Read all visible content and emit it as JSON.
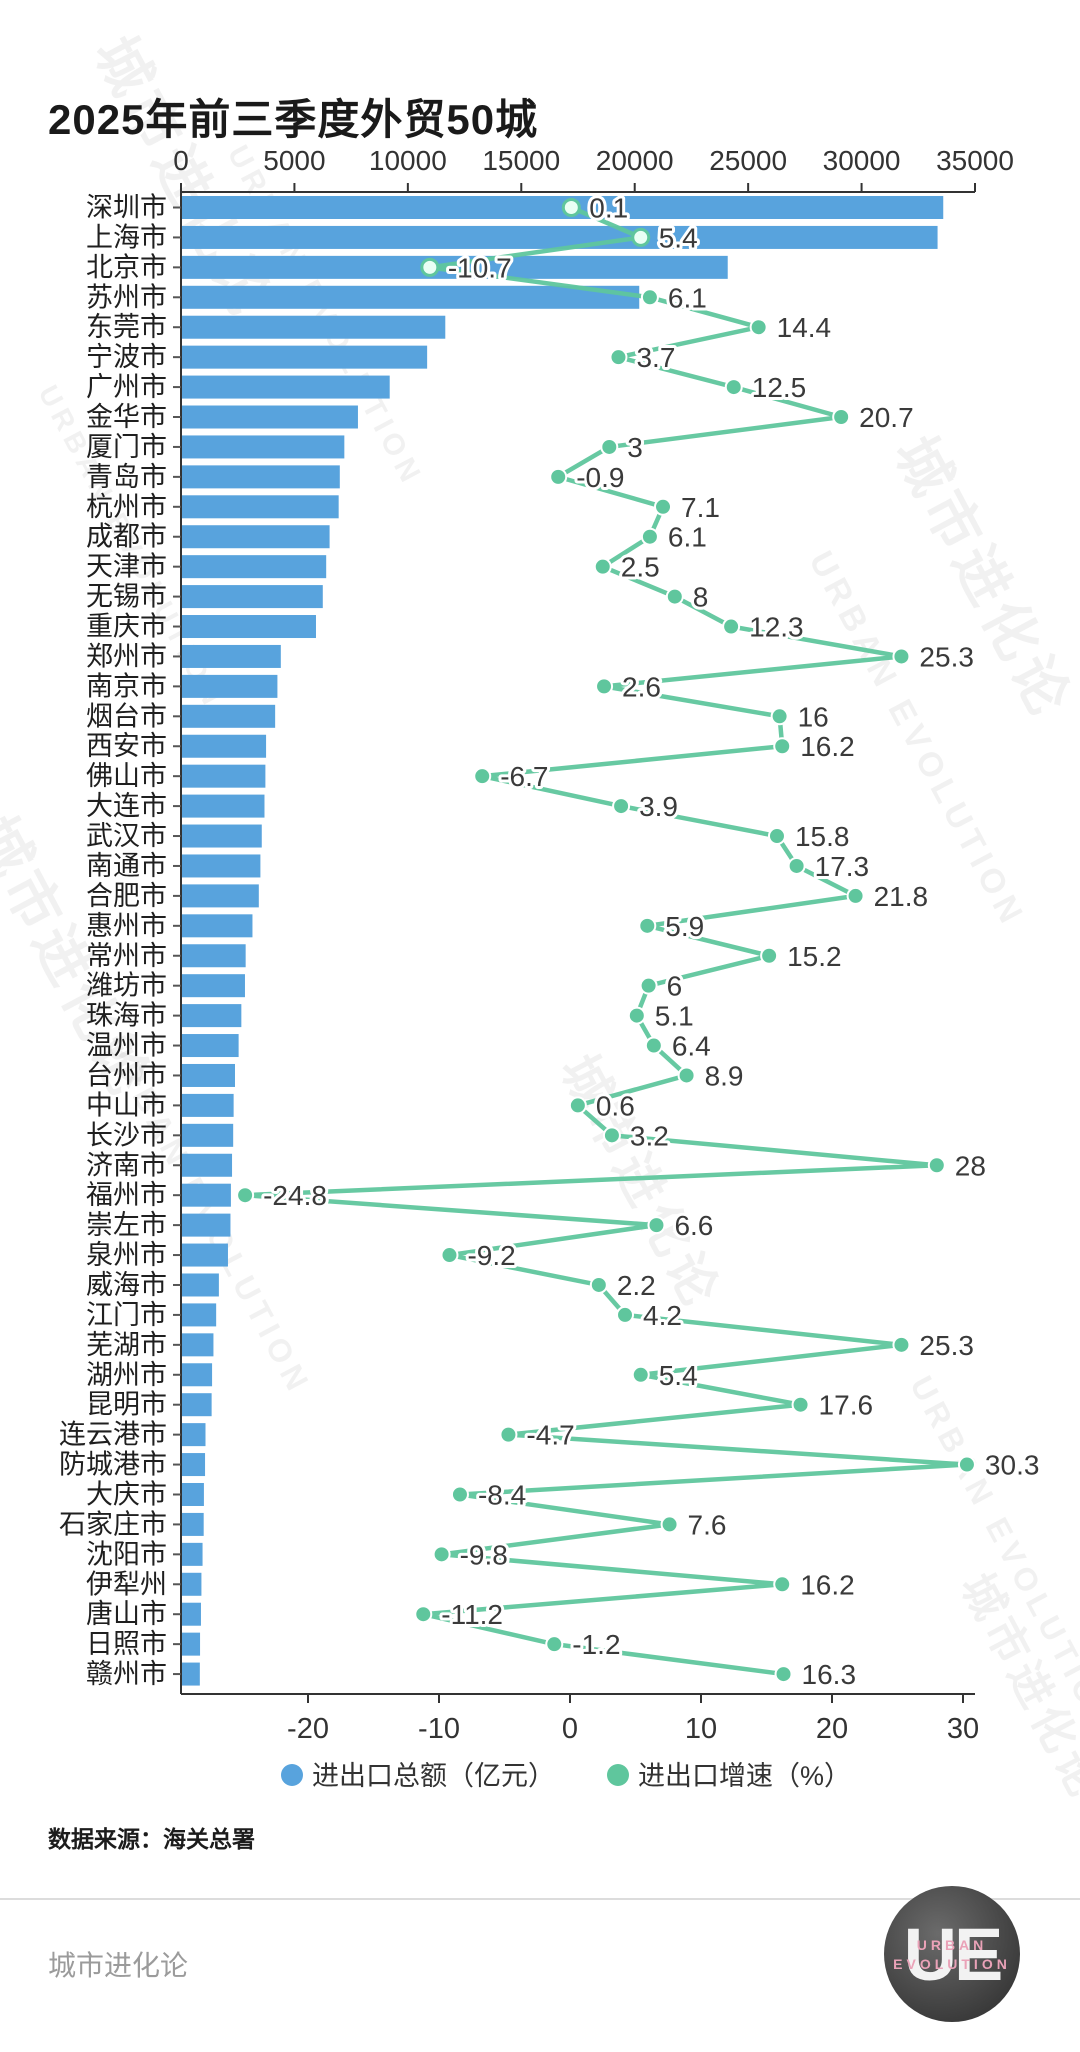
{
  "title": "2025年前三季度外贸50城",
  "legend": {
    "total": "进出口总额（亿元）",
    "growth": "进出口增速（%）"
  },
  "source": "数据来源：海关总署",
  "footer": {
    "brand": "城市进化论",
    "logo_initials": "UE",
    "logo_line1": "URBAN",
    "logo_line2": "EVOLUTION"
  },
  "watermarks": [
    "城市进化论",
    "URBAN EVOLUTION"
  ],
  "colors": {
    "bar": "#58a3dd",
    "line": "#5fc69d",
    "value_label": "#3a3a3a",
    "axis": "#333333",
    "city_label": "#1f1f1f"
  },
  "chart_data": {
    "type": "bar",
    "orientation": "horizontal",
    "title": "2025年前三季度外贸50城",
    "categories": [
      "深圳市",
      "上海市",
      "北京市",
      "苏州市",
      "东莞市",
      "宁波市",
      "广州市",
      "金华市",
      "厦门市",
      "青岛市",
      "杭州市",
      "成都市",
      "天津市",
      "无锡市",
      "重庆市",
      "郑州市",
      "南京市",
      "烟台市",
      "西安市",
      "佛山市",
      "大连市",
      "武汉市",
      "南通市",
      "合肥市",
      "惠州市",
      "常州市",
      "潍坊市",
      "珠海市",
      "温州市",
      "台州市",
      "中山市",
      "长沙市",
      "济南市",
      "福州市",
      "崇左市",
      "泉州市",
      "威海市",
      "江门市",
      "芜湖市",
      "湖州市",
      "昆明市",
      "连云港市",
      "防城港市",
      "大庆市",
      "石家庄市",
      "沈阳市",
      "伊犁州",
      "唐山市",
      "日照市",
      "赣州市"
    ],
    "series": [
      {
        "name": "进出口总额（亿元）",
        "type": "bar",
        "axis": "top",
        "values_estimated": true,
        "values": [
          33600,
          33350,
          24100,
          20200,
          11650,
          10850,
          9200,
          7800,
          7200,
          7000,
          6950,
          6550,
          6400,
          6250,
          5950,
          4400,
          4250,
          4150,
          3750,
          3720,
          3680,
          3560,
          3500,
          3430,
          3150,
          2850,
          2820,
          2660,
          2540,
          2380,
          2320,
          2300,
          2250,
          2200,
          2180,
          2070,
          1670,
          1550,
          1430,
          1370,
          1350,
          1080,
          1060,
          1010,
          1000,
          950,
          900,
          880,
          840,
          830
        ]
      },
      {
        "name": "进出口增速（%）",
        "type": "line",
        "axis": "bottom",
        "values_estimated": false,
        "values": [
          0.1,
          5.4,
          -10.7,
          6.1,
          14.4,
          3.7,
          12.5,
          20.7,
          3,
          -0.9,
          7.1,
          6.1,
          2.5,
          8,
          12.3,
          25.3,
          2.6,
          16,
          16.2,
          -6.7,
          3.9,
          15.8,
          17.3,
          21.8,
          5.9,
          15.2,
          6,
          5.1,
          6.4,
          8.9,
          0.6,
          3.2,
          28,
          -24.8,
          6.6,
          -9.2,
          2.2,
          4.2,
          25.3,
          5.4,
          17.6,
          -4.7,
          30.3,
          -8.4,
          7.6,
          -9.8,
          16.2,
          -11.2,
          -1.2,
          16.3
        ]
      }
    ],
    "top_axis": {
      "ticks": [
        0,
        5000,
        10000,
        15000,
        20000,
        25000,
        30000,
        35000
      ],
      "range": [
        0,
        35000
      ]
    },
    "bottom_axis": {
      "ticks": [
        -20,
        -10,
        0,
        10,
        20,
        30
      ],
      "range": [
        -29.7,
        30.9
      ]
    },
    "grid": false,
    "legend_position": "bottom"
  }
}
